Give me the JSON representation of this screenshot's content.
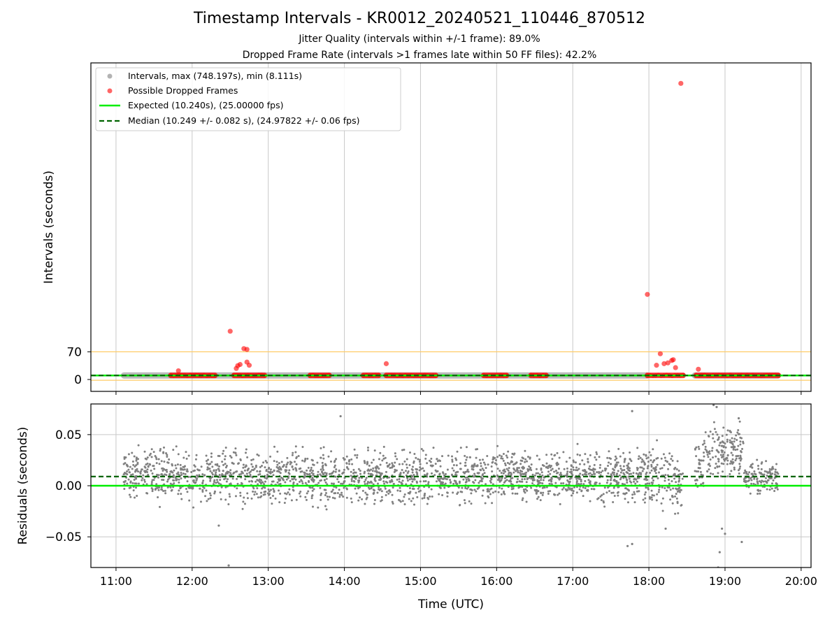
{
  "figure": {
    "title": "Timestamp Intervals - KR0012_20240521_110446_870512",
    "subtitle_1": "Jitter Quality (intervals within +/-1 frame): 89.0%",
    "subtitle_2": "Dropped Frame Rate (intervals >1 frames late within 50 FF files): 42.2%"
  },
  "colors": {
    "interval_points": "#808080",
    "dropped_points": "#ff0000",
    "expected_line": "#00ee00",
    "median_line": "#006400",
    "threshold_line": "#ffcc66",
    "grid": "#c8c8c8"
  },
  "chart_data": [
    {
      "type": "scatter",
      "id": "intervals",
      "ylabel": "Intervals (seconds)",
      "yticks": [
        0,
        70
      ],
      "ylim": [
        -30,
        800
      ],
      "grid": "x-only",
      "legend_position": "top-left",
      "legend": [
        {
          "label": "Intervals, max (748.197s), min (8.111s)",
          "marker": "gray-dot"
        },
        {
          "label": "Possible Dropped Frames",
          "marker": "red-dot"
        },
        {
          "label": "Expected (10.240s), (25.00000 fps)",
          "marker": "green-solid"
        },
        {
          "label": "Median (10.249 +/- 0.082 s), (24.97822 +/- 0.06 fps)",
          "marker": "green-dashed"
        }
      ],
      "expected": 10.24,
      "median": 10.249,
      "threshold_lines": [
        70,
        -2
      ],
      "interval_segments": [
        [
          11.1,
          17.98
        ],
        [
          18.6,
          19.7
        ]
      ],
      "dropped_clusters": [
        {
          "x0": 11.72,
          "x1": 12.3,
          "y": 10.3
        },
        {
          "x0": 12.55,
          "x1": 12.95,
          "y": 10.3
        },
        {
          "x0": 13.55,
          "x1": 13.8,
          "y": 10.3
        },
        {
          "x0": 14.25,
          "x1": 14.45,
          "y": 10.3
        },
        {
          "x0": 14.55,
          "x1": 15.2,
          "y": 10.3
        },
        {
          "x0": 15.83,
          "x1": 16.13,
          "y": 10.3
        },
        {
          "x0": 16.45,
          "x1": 16.65,
          "y": 10.3
        },
        {
          "x0": 17.98,
          "x1": 18.45,
          "y": 10.3
        },
        {
          "x0": 18.62,
          "x1": 19.7,
          "y": 10.3
        }
      ],
      "dropped_points": [
        {
          "x": 11.82,
          "y": 22
        },
        {
          "x": 12.5,
          "y": 122
        },
        {
          "x": 12.58,
          "y": 28
        },
        {
          "x": 12.6,
          "y": 35
        },
        {
          "x": 12.63,
          "y": 38
        },
        {
          "x": 12.68,
          "y": 78
        },
        {
          "x": 12.72,
          "y": 76
        },
        {
          "x": 12.72,
          "y": 44
        },
        {
          "x": 12.75,
          "y": 36
        },
        {
          "x": 14.55,
          "y": 40
        },
        {
          "x": 17.98,
          "y": 215
        },
        {
          "x": 18.1,
          "y": 36
        },
        {
          "x": 18.15,
          "y": 65
        },
        {
          "x": 18.2,
          "y": 40
        },
        {
          "x": 18.25,
          "y": 42
        },
        {
          "x": 18.3,
          "y": 48
        },
        {
          "x": 18.32,
          "y": 50
        },
        {
          "x": 18.35,
          "y": 30
        },
        {
          "x": 18.42,
          "y": 748.197
        },
        {
          "x": 18.65,
          "y": 26
        }
      ]
    },
    {
      "type": "scatter",
      "id": "residuals",
      "xlabel": "Time (UTC)",
      "ylabel": "Residuals (seconds)",
      "xlim": [
        10.67,
        20.13
      ],
      "xtick_values": [
        11,
        12,
        13,
        14,
        15,
        16,
        17,
        18,
        19,
        20
      ],
      "xticks": [
        "11:00",
        "12:00",
        "13:00",
        "14:00",
        "15:00",
        "16:00",
        "17:00",
        "18:00",
        "19:00",
        "20:00"
      ],
      "ylim": [
        -0.08,
        0.08
      ],
      "ytick_values": [
        -0.05,
        0,
        0.05
      ],
      "yticks": [
        "−0.05",
        "0.00",
        "0.05"
      ],
      "grid": "both",
      "expected_residual": 0,
      "median_residual": 0.009,
      "bands": [
        {
          "x0": 11.1,
          "x1": 11.45,
          "center": 0.012,
          "spread": 0.022
        },
        {
          "x0": 11.45,
          "x1": 17.95,
          "center": 0.009,
          "spread": 0.025
        },
        {
          "x0": 17.95,
          "x1": 18.45,
          "center": 0.007,
          "spread": 0.03
        },
        {
          "x0": 18.6,
          "x1": 18.72,
          "center": 0.015,
          "spread": 0.03
        },
        {
          "x0": 18.72,
          "x1": 19.25,
          "center": 0.035,
          "spread": 0.025
        },
        {
          "x0": 19.25,
          "x1": 19.7,
          "center": 0.008,
          "spread": 0.015
        }
      ],
      "outliers": [
        {
          "x": 12.48,
          "y": -0.078
        },
        {
          "x": 12.35,
          "y": -0.039
        },
        {
          "x": 13.95,
          "y": 0.068
        },
        {
          "x": 17.78,
          "y": 0.073
        },
        {
          "x": 17.72,
          "y": -0.059
        },
        {
          "x": 17.78,
          "y": -0.057
        },
        {
          "x": 18.22,
          "y": -0.042
        },
        {
          "x": 18.85,
          "y": 0.079
        },
        {
          "x": 18.89,
          "y": 0.077
        },
        {
          "x": 18.93,
          "y": -0.065
        },
        {
          "x": 18.91,
          "y": -0.08
        },
        {
          "x": 18.96,
          "y": -0.042
        },
        {
          "x": 19.0,
          "y": -0.047
        },
        {
          "x": 19.18,
          "y": 0.066
        },
        {
          "x": 19.22,
          "y": -0.055
        },
        {
          "x": 19.1,
          "y": 0.022
        }
      ]
    }
  ]
}
